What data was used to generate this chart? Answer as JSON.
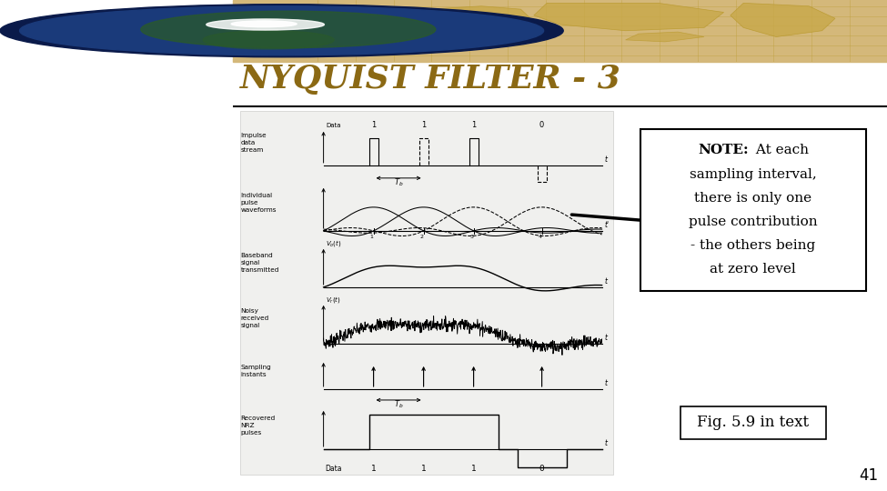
{
  "title": "NYQUIST FILTER - 3",
  "title_color": "#8B6914",
  "title_fontsize": 26,
  "slide_bg": "#ffffff",
  "header_bg": "#d4b87a",
  "header_grid_color": "#c9a84c",
  "note_text_lines": [
    "NOTE: At each",
    "sampling interval,",
    "there is only one",
    "pulse contribution",
    "- the others being",
    "at zero level"
  ],
  "fig_label": "Fig. 5.9 in text",
  "page_number": "41",
  "panel_labels": [
    "Impulse\ndata\nstream",
    "Individual\npulse\nwaveforms",
    "Baseband\nsignal\ntransmitted",
    "Noisy\nreceived\nsignal",
    "Sampling\ninstants",
    "Recovered\nNRZ\npulses"
  ],
  "data_label": "Data",
  "data_bits": [
    "1",
    "1",
    "1",
    "0"
  ]
}
